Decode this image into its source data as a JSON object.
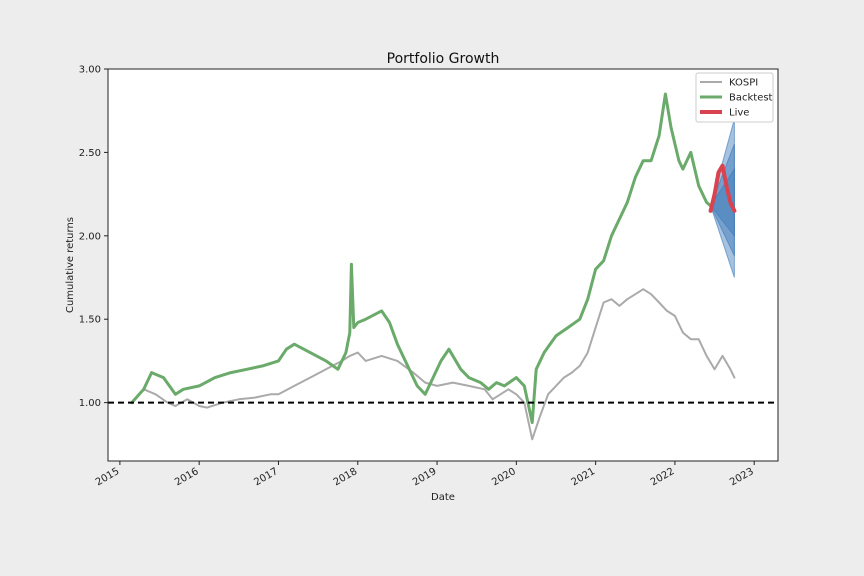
{
  "chart_data": {
    "type": "line",
    "title": "Portfolio Growth",
    "xlabel": "Date",
    "ylabel": "Cumulative returns",
    "xlim": [
      2014.85,
      2023.3
    ],
    "ylim": [
      0.65,
      3.0
    ],
    "x_ticks": [
      2015,
      2016,
      2017,
      2018,
      2019,
      2020,
      2021,
      2022,
      2023
    ],
    "x_tick_labels": [
      "2015",
      "2016",
      "2017",
      "2018",
      "2019",
      "2020",
      "2021",
      "2022",
      "2023"
    ],
    "y_ticks": [
      1.0,
      1.5,
      2.0,
      2.5,
      3.0
    ],
    "y_tick_labels": [
      "1.00",
      "1.50",
      "2.00",
      "2.50",
      "3.00"
    ],
    "legend_position": "top-right",
    "grid": false,
    "reference_line": {
      "y": 1.0,
      "style": "dashed",
      "color": "#000000"
    },
    "series": [
      {
        "name": "KOSPI",
        "color": "#aaaaaa",
        "x": [
          2015.15,
          2015.3,
          2015.45,
          2015.6,
          2015.7,
          2015.85,
          2016.0,
          2016.1,
          2016.3,
          2016.5,
          2016.7,
          2016.9,
          2017.0,
          2017.2,
          2017.4,
          2017.6,
          2017.8,
          2017.9,
          2018.0,
          2018.1,
          2018.3,
          2018.5,
          2018.7,
          2018.85,
          2019.0,
          2019.2,
          2019.4,
          2019.6,
          2019.7,
          2019.8,
          2019.9,
          2020.0,
          2020.1,
          2020.2,
          2020.3,
          2020.4,
          2020.5,
          2020.6,
          2020.7,
          2020.8,
          2020.9,
          2021.0,
          2021.1,
          2021.2,
          2021.3,
          2021.4,
          2021.5,
          2021.6,
          2021.7,
          2021.8,
          2021.9,
          2022.0,
          2022.1,
          2022.2,
          2022.3,
          2022.4,
          2022.5,
          2022.6,
          2022.7,
          2022.75
        ],
        "values": [
          1.0,
          1.08,
          1.05,
          1.0,
          0.98,
          1.02,
          0.98,
          0.97,
          1.0,
          1.02,
          1.03,
          1.05,
          1.05,
          1.1,
          1.15,
          1.2,
          1.25,
          1.28,
          1.3,
          1.25,
          1.28,
          1.25,
          1.18,
          1.12,
          1.1,
          1.12,
          1.1,
          1.08,
          1.02,
          1.05,
          1.08,
          1.05,
          1.0,
          0.78,
          0.92,
          1.05,
          1.1,
          1.15,
          1.18,
          1.22,
          1.3,
          1.45,
          1.6,
          1.62,
          1.58,
          1.62,
          1.65,
          1.68,
          1.65,
          1.6,
          1.55,
          1.52,
          1.42,
          1.38,
          1.38,
          1.28,
          1.2,
          1.28,
          1.2,
          1.15
        ]
      },
      {
        "name": "Backtest",
        "color": "#6aaa6a",
        "x": [
          2015.15,
          2015.3,
          2015.4,
          2015.55,
          2015.7,
          2015.8,
          2016.0,
          2016.2,
          2016.4,
          2016.6,
          2016.8,
          2017.0,
          2017.1,
          2017.2,
          2017.4,
          2017.6,
          2017.75,
          2017.85,
          2017.9,
          2017.92,
          2017.95,
          2018.0,
          2018.1,
          2018.3,
          2018.4,
          2018.5,
          2018.6,
          2018.75,
          2018.85,
          2018.95,
          2019.05,
          2019.15,
          2019.3,
          2019.4,
          2019.55,
          2019.65,
          2019.75,
          2019.85,
          2020.0,
          2020.1,
          2020.2,
          2020.25,
          2020.35,
          2020.5,
          2020.65,
          2020.8,
          2020.9,
          2021.0,
          2021.1,
          2021.2,
          2021.3,
          2021.4,
          2021.5,
          2021.6,
          2021.7,
          2021.8,
          2021.88,
          2021.95,
          2022.05,
          2022.1,
          2022.2,
          2022.3,
          2022.4,
          2022.45
        ],
        "values": [
          1.0,
          1.08,
          1.18,
          1.15,
          1.05,
          1.08,
          1.1,
          1.15,
          1.18,
          1.2,
          1.22,
          1.25,
          1.32,
          1.35,
          1.3,
          1.25,
          1.2,
          1.3,
          1.42,
          1.83,
          1.45,
          1.48,
          1.5,
          1.55,
          1.48,
          1.35,
          1.25,
          1.1,
          1.05,
          1.15,
          1.25,
          1.32,
          1.2,
          1.15,
          1.12,
          1.08,
          1.12,
          1.1,
          1.15,
          1.1,
          0.88,
          1.2,
          1.3,
          1.4,
          1.45,
          1.5,
          1.62,
          1.8,
          1.85,
          2.0,
          2.1,
          2.2,
          2.35,
          2.45,
          2.45,
          2.6,
          2.85,
          2.65,
          2.45,
          2.4,
          2.5,
          2.3,
          2.2,
          2.18
        ]
      },
      {
        "name": "Live",
        "color": "#d9434f",
        "x": [
          2022.45,
          2022.5,
          2022.55,
          2022.6,
          2022.65,
          2022.7,
          2022.75
        ],
        "values": [
          2.15,
          2.25,
          2.38,
          2.42,
          2.3,
          2.2,
          2.15
        ]
      }
    ],
    "cone": {
      "color": "#3a78b8",
      "x": [
        2022.45,
        2022.75
      ],
      "bands": [
        {
          "lower": [
            2.18,
            1.75
          ],
          "upper": [
            2.18,
            2.7
          ]
        },
        {
          "lower": [
            2.18,
            1.88
          ],
          "upper": [
            2.18,
            2.55
          ]
        },
        {
          "lower": [
            2.18,
            2.0
          ],
          "upper": [
            2.18,
            2.4
          ]
        }
      ]
    }
  }
}
